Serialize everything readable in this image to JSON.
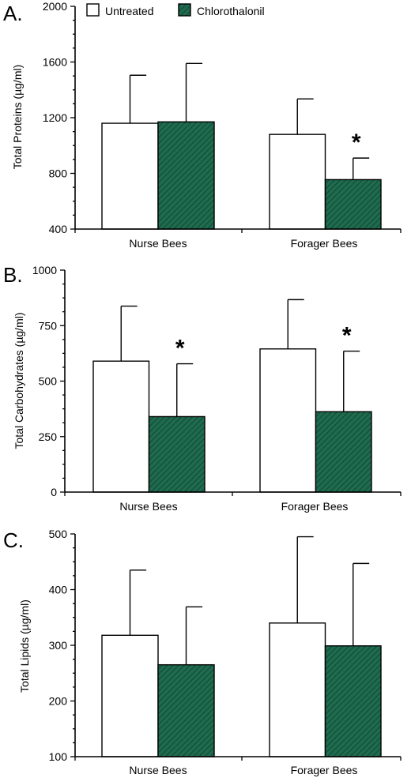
{
  "legend": {
    "items": [
      {
        "label": "Untreated",
        "color": "#ffffff"
      },
      {
        "label": "Chlorothalonil",
        "color": "#1f6b4f"
      }
    ]
  },
  "colors": {
    "untreated_fill": "#ffffff",
    "treated_fill": "#1f6b4f",
    "hatch_line": "#0e3d2b",
    "axis": "#000000"
  },
  "chart_data": [
    {
      "panel": "A.",
      "type": "bar",
      "ylabel": "Total Proteins (µg/ml)",
      "ylim": [
        400,
        2000
      ],
      "yticks": [
        400,
        800,
        1200,
        1600,
        2000
      ],
      "categories": [
        "Nurse Bees",
        "Forager Bees"
      ],
      "series": [
        {
          "name": "Untreated",
          "values": [
            1160,
            1080
          ],
          "errors": [
            345,
            255
          ]
        },
        {
          "name": "Chlorothalonil",
          "values": [
            1170,
            755
          ],
          "errors": [
            420,
            155
          ]
        }
      ],
      "significance": [
        {
          "category": "Forager Bees",
          "series": "Chlorothalonil",
          "label": "*"
        }
      ],
      "grid": false,
      "legend_position": "top"
    },
    {
      "panel": "B.",
      "type": "bar",
      "ylabel": "Total Carbohydrates (µg/ml)",
      "ylim": [
        0,
        1000
      ],
      "yticks": [
        0,
        250,
        500,
        750,
        1000
      ],
      "categories": [
        "Nurse Bees",
        "Forager Bees"
      ],
      "series": [
        {
          "name": "Untreated",
          "values": [
            590,
            645
          ],
          "errors": [
            248,
            222
          ]
        },
        {
          "name": "Chlorothalonil",
          "values": [
            340,
            362
          ],
          "errors": [
            238,
            273
          ]
        }
      ],
      "significance": [
        {
          "category": "Nurse Bees",
          "series": "Chlorothalonil",
          "label": "*"
        },
        {
          "category": "Forager Bees",
          "series": "Chlorothalonil",
          "label": "*"
        }
      ],
      "grid": false
    },
    {
      "panel": "C.",
      "type": "bar",
      "ylabel": "Total Lipids (µg/ml)",
      "ylim": [
        100,
        500
      ],
      "yticks": [
        100,
        200,
        300,
        400,
        500
      ],
      "categories": [
        "Nurse Bees",
        "Forager Bees"
      ],
      "series": [
        {
          "name": "Untreated",
          "values": [
            318,
            340
          ],
          "errors": [
            117,
            155
          ]
        },
        {
          "name": "Chlorothalonil",
          "values": [
            265,
            299
          ],
          "errors": [
            104,
            148
          ]
        }
      ],
      "significance": [],
      "grid": false
    }
  ]
}
